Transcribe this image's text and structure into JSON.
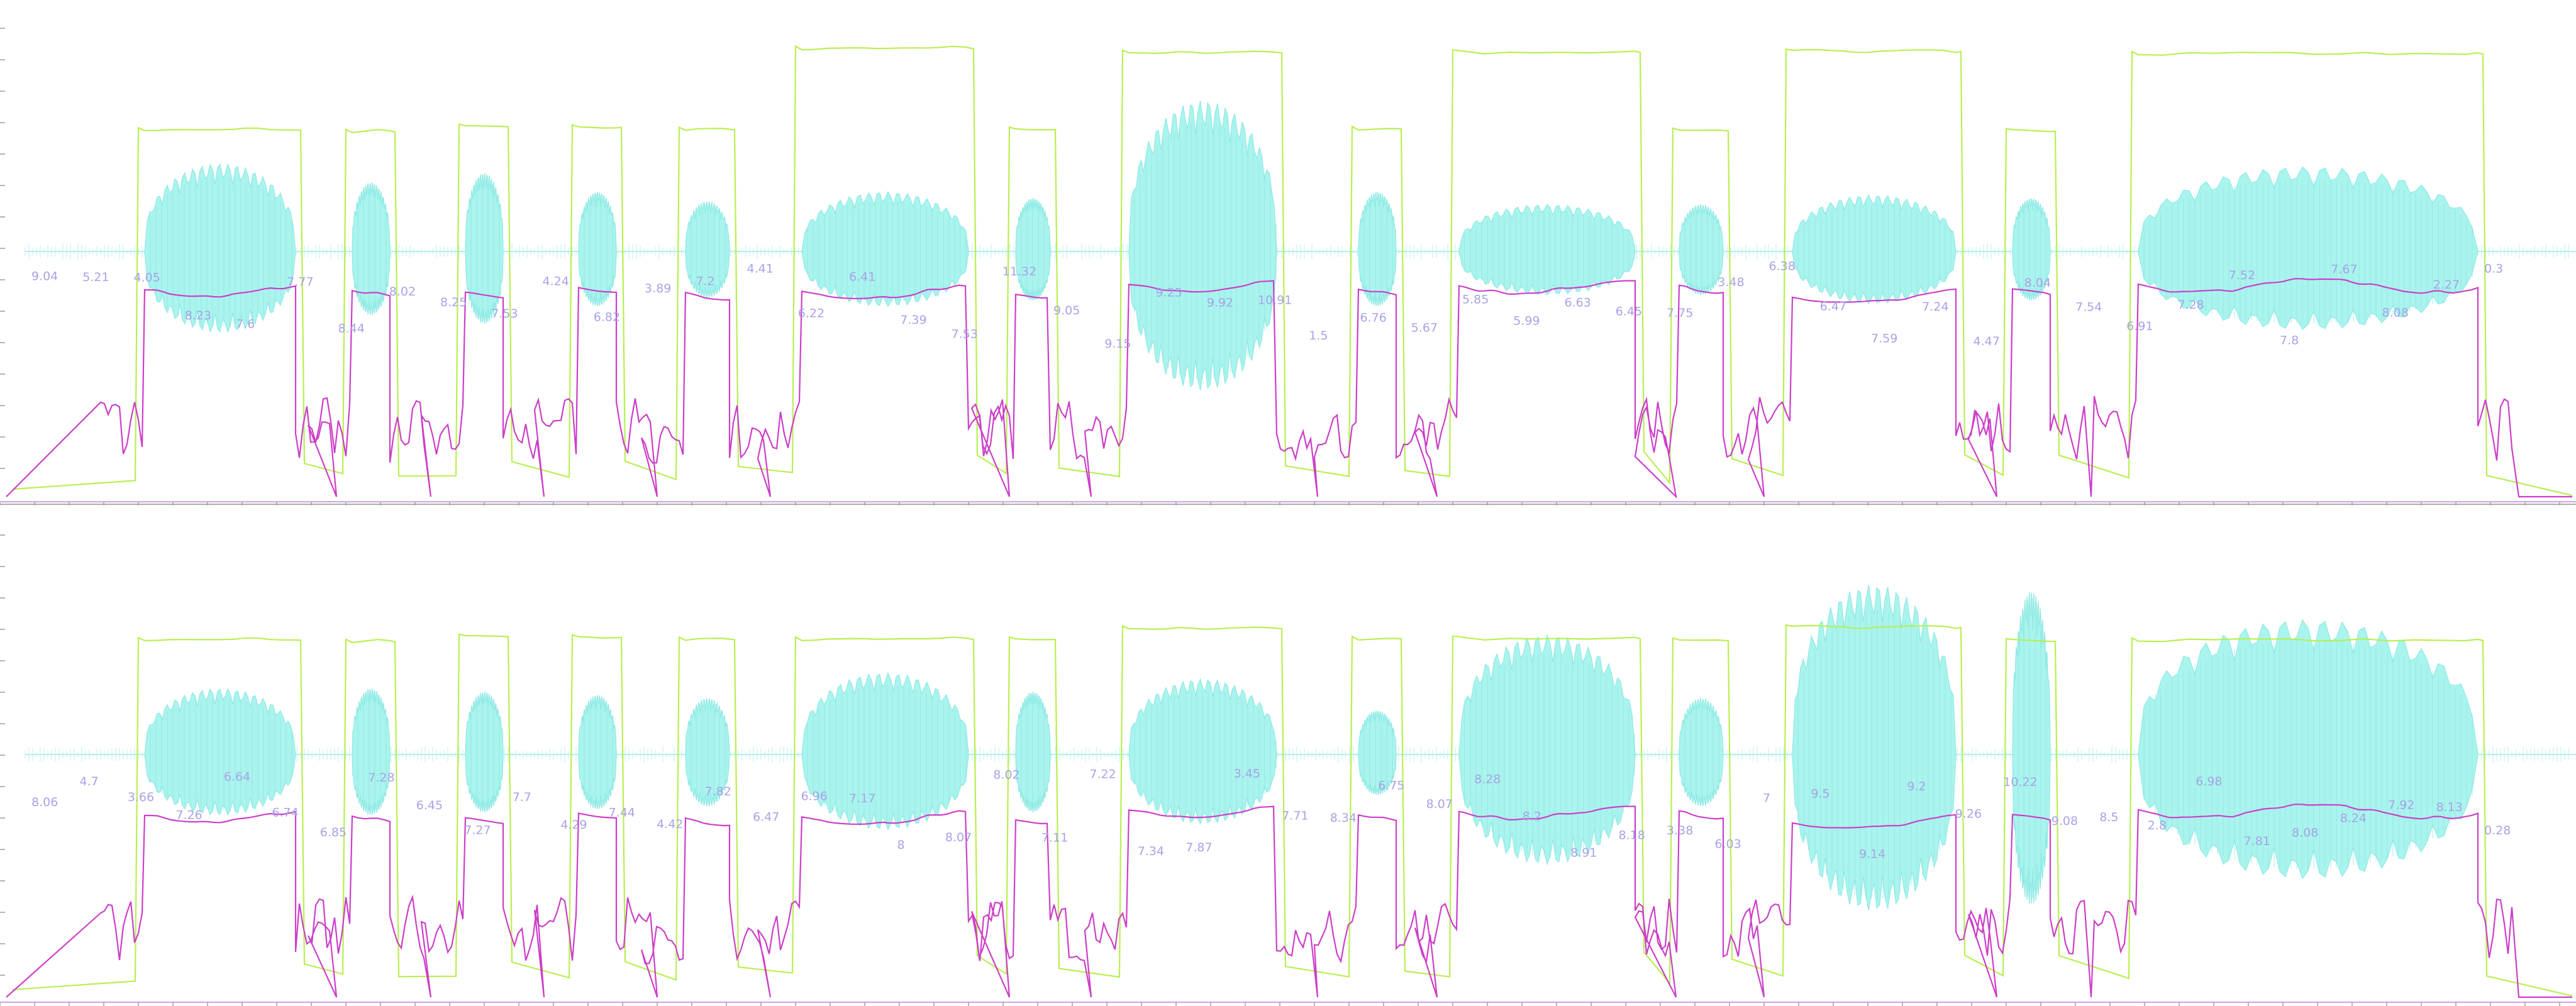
{
  "chart_data": {
    "type": "line",
    "panels": [
      {
        "series": [
          {
            "kind": "waveform",
            "color": "#aaf4ee"
          },
          {
            "kind": "intensity",
            "color": "#b9ef52"
          },
          {
            "kind": "pitch",
            "color": "#cc3fc8"
          }
        ],
        "labels": [
          "9.04",
          "5.21",
          "4.05",
          "8.23",
          "7.6",
          "7.77",
          "8.44",
          "8.02",
          "8.25",
          "7.53",
          "4.24",
          "6.82",
          "3.89",
          "7.2",
          "4.41",
          "6.22",
          "6.41",
          "7.39",
          "7.53",
          "11.32",
          "9.05",
          "9.15",
          "9.25",
          "9.92",
          "10.91",
          "1.5",
          "6.76",
          "5.67",
          "5.85",
          "5.99",
          "6.63",
          "6.45",
          "7.75",
          "3.48",
          "6.38",
          "6.47",
          "7.59",
          "7.24",
          "4.47",
          "8.04",
          "7.54",
          "6.91",
          "7.28",
          "7.52",
          "7.8",
          "7.67",
          "8.08",
          "2.27",
          "0.3"
        ]
      },
      {
        "series": [
          {
            "kind": "waveform",
            "color": "#aaf4ee"
          },
          {
            "kind": "intensity",
            "color": "#b9ef52"
          },
          {
            "kind": "pitch",
            "color": "#cc3fc8"
          }
        ],
        "labels": [
          "8.06",
          "4.7",
          "3.66",
          "7.26",
          "6.64",
          "6.74",
          "6.85",
          "7.28",
          "6.45",
          "7.27",
          "7.7",
          "4.29",
          "7.44",
          "4.42",
          "7.82",
          "6.47",
          "6.96",
          "7.17",
          "8",
          "8.07",
          "8.02",
          "7.11",
          "7.22",
          "7.34",
          "7.87",
          "3.45",
          "7.71",
          "8.34",
          "6.75",
          "8.07",
          "8.28",
          "8.2",
          "8.91",
          "8.18",
          "3.38",
          "6.03",
          "7",
          "9.5",
          "9.14",
          "9.2",
          "9.26",
          "10.22",
          "9.08",
          "8.5",
          "2.8",
          "6.98",
          "7.81",
          "8.08",
          "8.24",
          "7.92",
          "8.13",
          "0.28"
        ]
      }
    ]
  }
}
